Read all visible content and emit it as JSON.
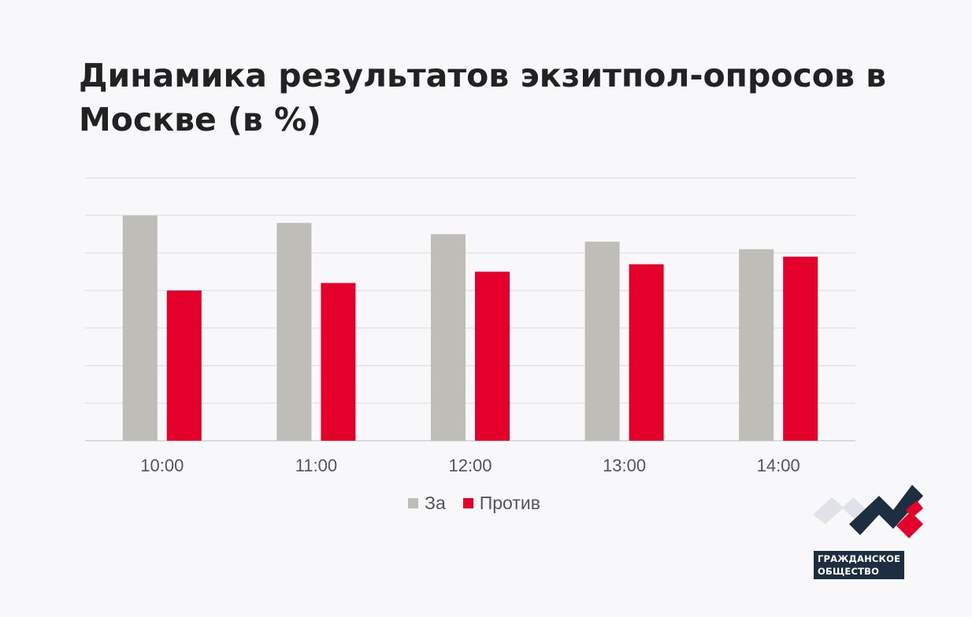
{
  "title": "Динамика результатов экзитпол-опросов в Москве (в %)",
  "chart_data": {
    "type": "bar",
    "title": "Динамика результатов экзитпол-опросов в Москве (в %)",
    "xlabel": "",
    "ylabel": "",
    "categories": [
      "10:00",
      "11:00",
      "12:00",
      "13:00",
      "14:00"
    ],
    "series": [
      {
        "name": "За",
        "color": "#bebdb8",
        "values": [
          60,
          58,
          55,
          53,
          51
        ]
      },
      {
        "name": "Против",
        "color": "#e4002b",
        "values": [
          40,
          42,
          45,
          47,
          49
        ]
      }
    ],
    "ylim": [
      0,
      70
    ],
    "grid": true,
    "legend": "bottom-center"
  },
  "logo": {
    "line1": "ГРАЖДАНСКОЕ",
    "line2": "ОБЩЕСТВО",
    "colors": {
      "navy": "#1c2e40",
      "red": "#e4002b",
      "gray": "#dfe2e6"
    }
  }
}
